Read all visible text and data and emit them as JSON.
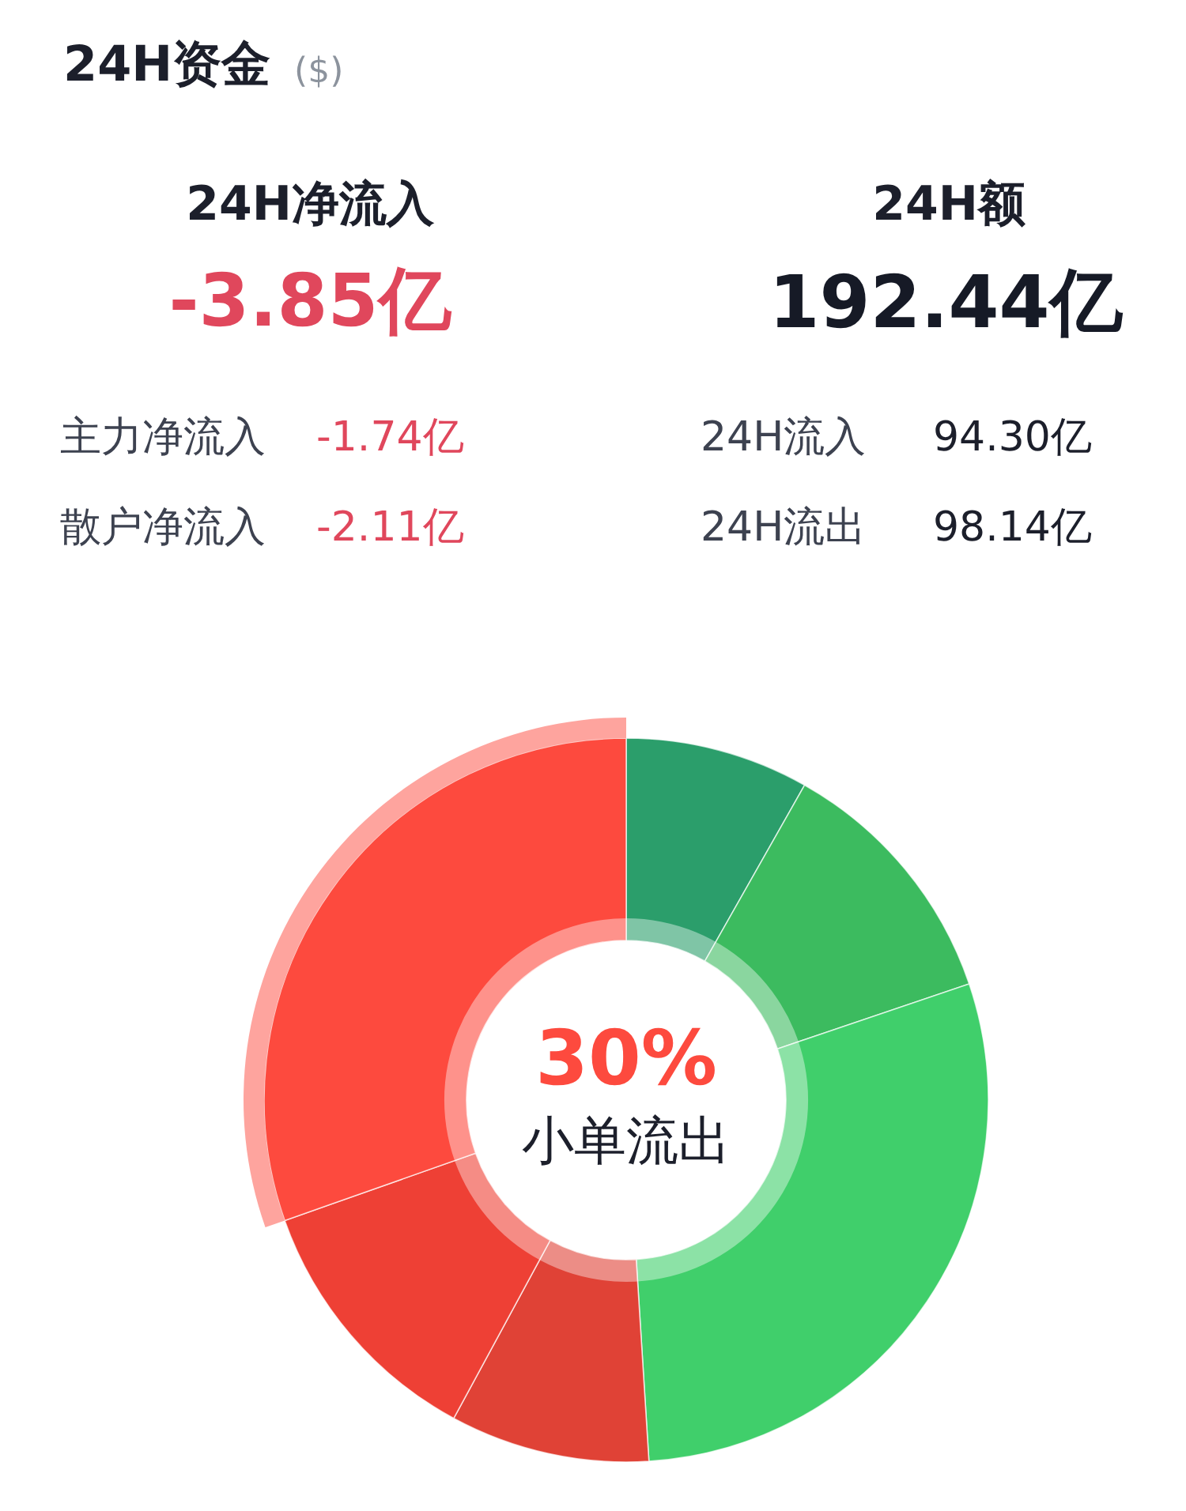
{
  "chart_data": [
    {
      "type": "other",
      "title": "24H资金",
      "subtitle": "($)",
      "annotations": [
        "24H净流入",
        "-3.85亿",
        "24H额",
        "192.44亿",
        "主力净流入",
        "-1.74亿",
        "散户净流入",
        "-2.11亿",
        "24H流入",
        "94.30亿",
        "24H流出",
        "98.14亿"
      ]
    },
    {
      "type": "donut",
      "categories": [
        null,
        null,
        null,
        null,
        null,
        "小单流出"
      ],
      "values": [
        8.2,
        11.6,
        29.2,
        8.9,
        11.7,
        30.4
      ],
      "colors": [
        "#2b9e6b",
        "#3cbb5f",
        "#40cf6b",
        "#e04236",
        "#ee4035",
        "#fd4a3e"
      ],
      "value_labels": [
        null,
        null,
        null,
        null,
        null,
        "30%"
      ]
    }
  ]
}
